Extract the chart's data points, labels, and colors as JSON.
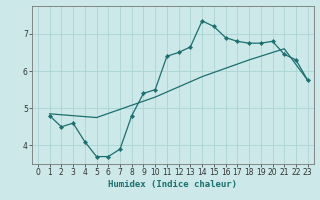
{
  "xlabel": "Humidex (Indice chaleur)",
  "background_color": "#cce8e8",
  "line_color": "#1a7070",
  "grid_color": "#aad4d4",
  "xlim": [
    -0.5,
    23.5
  ],
  "ylim": [
    3.5,
    7.75
  ],
  "yticks": [
    4,
    5,
    6,
    7
  ],
  "xticks": [
    0,
    1,
    2,
    3,
    4,
    5,
    6,
    7,
    8,
    9,
    10,
    11,
    12,
    13,
    14,
    15,
    16,
    17,
    18,
    19,
    20,
    21,
    22,
    23
  ],
  "line1_x": [
    1,
    2,
    3,
    4,
    5,
    6,
    7,
    8,
    9,
    10,
    11,
    12,
    13,
    14,
    15,
    16,
    17,
    18,
    19,
    20,
    21,
    22,
    23
  ],
  "line1_y": [
    4.8,
    4.5,
    4.6,
    4.1,
    3.7,
    3.7,
    3.9,
    4.8,
    5.4,
    5.5,
    6.4,
    6.5,
    6.65,
    7.35,
    7.2,
    6.9,
    6.8,
    6.75,
    6.75,
    6.8,
    6.45,
    6.3,
    5.75
  ],
  "line2_x": [
    1,
    5,
    10,
    14,
    18,
    21,
    23
  ],
  "line2_y": [
    4.85,
    4.75,
    5.3,
    5.85,
    6.3,
    6.6,
    5.75
  ]
}
